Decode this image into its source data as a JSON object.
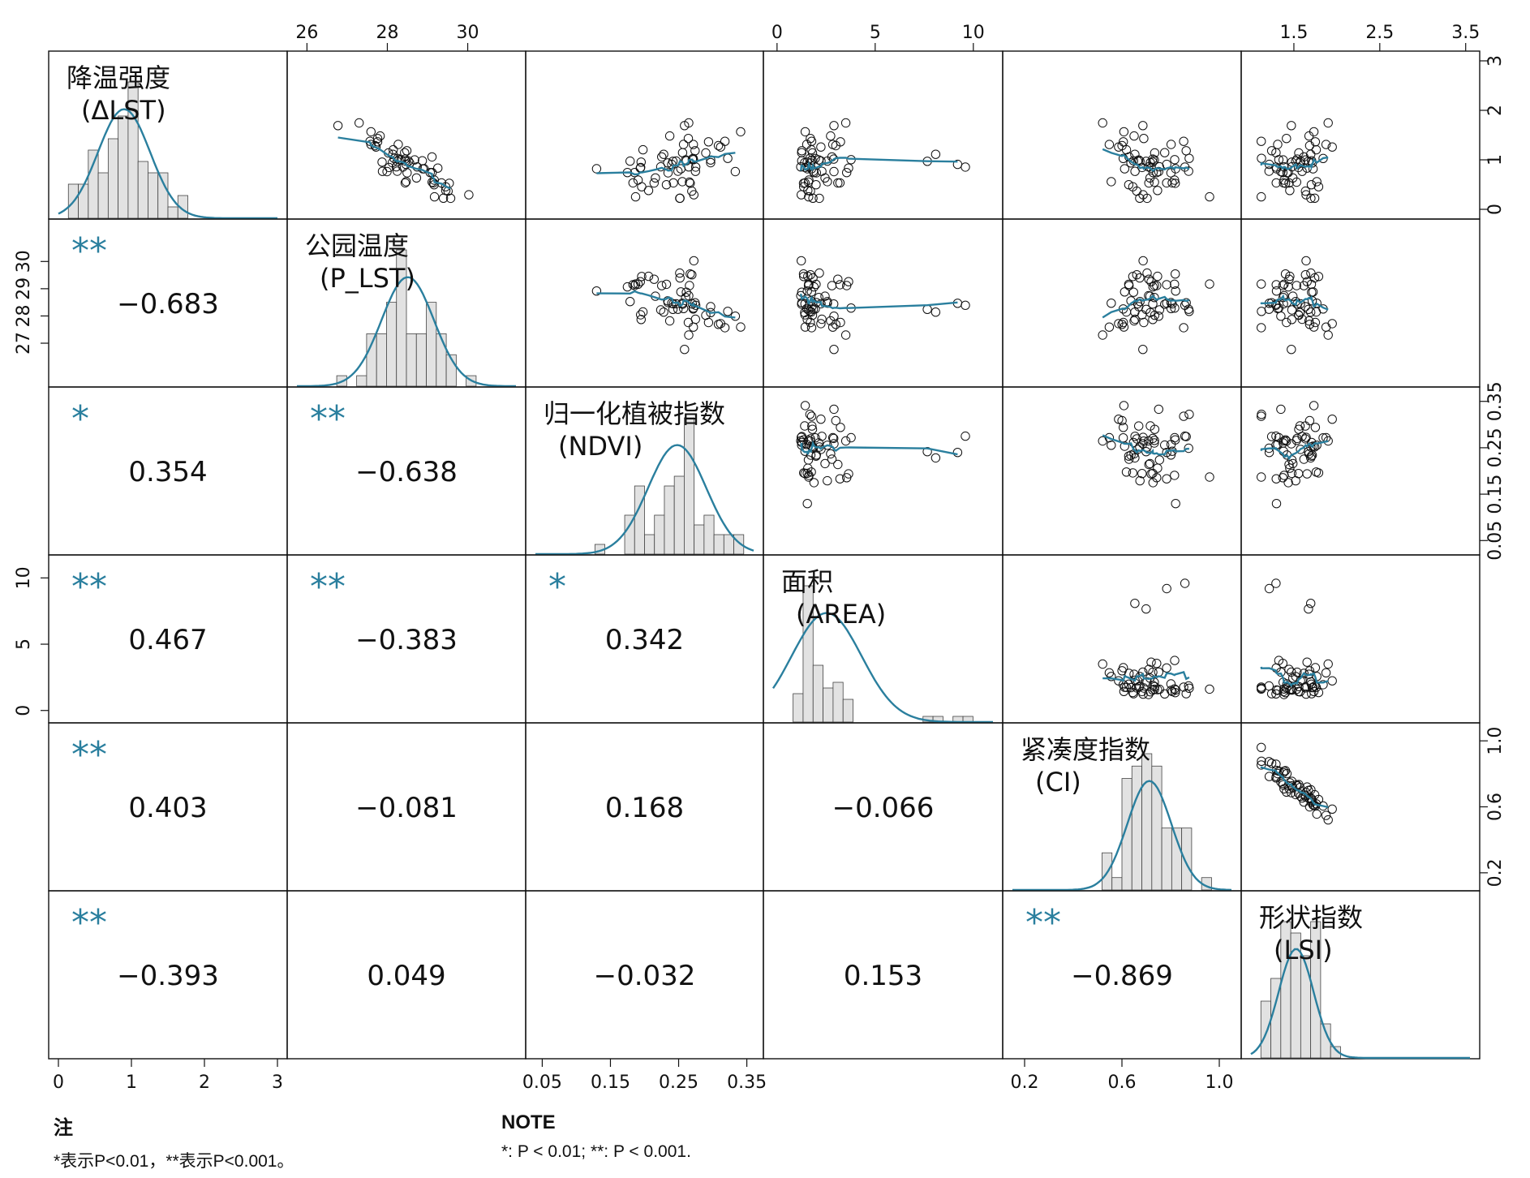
{
  "chart_data": {
    "type": "pair-correlation-matrix",
    "variables": [
      {
        "id": "dlst",
        "label_line1": "降温强度",
        "label_line2": "(ΔLST)",
        "range": [
          0,
          3
        ],
        "ticks": [
          0,
          1,
          2,
          3
        ]
      },
      {
        "id": "plst",
        "label_line1": "公园温度",
        "label_line2": "(P_LST)",
        "range": [
          25.75,
          31.2
        ],
        "ticks": [
          26,
          28,
          30
        ],
        "left_ticks": [
          27,
          28,
          29,
          30
        ]
      },
      {
        "id": "ndvi",
        "label_line1": "归一化植被指数",
        "label_line2": "(NDVI)",
        "range": [
          0.04,
          0.36
        ],
        "ticks": [
          0.05,
          0.15,
          0.25,
          0.35
        ],
        "tick_labels": [
          "0.05",
          "0.15",
          "0.25",
          "0.35"
        ]
      },
      {
        "id": "area",
        "label_line1": "面积",
        "label_line2": "(AREA)",
        "range": [
          -0.2,
          11
        ],
        "ticks": [
          0,
          5,
          10
        ]
      },
      {
        "id": "ci",
        "label_line1": "紧凑度指数",
        "label_line2": "(CI)",
        "range": [
          0.15,
          1.05
        ],
        "ticks": [
          0.2,
          0.6,
          1.0
        ],
        "tick_labels": [
          "0.2",
          "0.6",
          "1.0"
        ]
      },
      {
        "id": "lsi",
        "label_line1": "形状指数",
        "label_line2": "(LSI)",
        "range": [
          1.0,
          3.55
        ],
        "ticks": [
          1.5,
          2.5,
          3.5
        ],
        "tick_labels": [
          "1.5",
          "2.5",
          "3.5"
        ],
        "right_ticks": [
          0,
          1,
          2,
          3
        ]
      }
    ],
    "correlations": [
      {
        "row": 2,
        "col": 1,
        "value": "−0.683",
        "sig": "**"
      },
      {
        "row": 3,
        "col": 1,
        "value": "0.354",
        "sig": "*"
      },
      {
        "row": 3,
        "col": 2,
        "value": "−0.638",
        "sig": "**"
      },
      {
        "row": 4,
        "col": 1,
        "value": "0.467",
        "sig": "**"
      },
      {
        "row": 4,
        "col": 2,
        "value": "−0.383",
        "sig": "**"
      },
      {
        "row": 4,
        "col": 3,
        "value": "0.342",
        "sig": "*"
      },
      {
        "row": 5,
        "col": 1,
        "value": "0.403",
        "sig": "**"
      },
      {
        "row": 5,
        "col": 2,
        "value": "−0.081",
        "sig": ""
      },
      {
        "row": 5,
        "col": 3,
        "value": "0.168",
        "sig": ""
      },
      {
        "row": 5,
        "col": 4,
        "value": "−0.066",
        "sig": ""
      },
      {
        "row": 6,
        "col": 1,
        "value": "−0.393",
        "sig": "**"
      },
      {
        "row": 6,
        "col": 2,
        "value": "0.049",
        "sig": ""
      },
      {
        "row": 6,
        "col": 3,
        "value": "−0.032",
        "sig": ""
      },
      {
        "row": 6,
        "col": 4,
        "value": "0.153",
        "sig": ""
      },
      {
        "row": 6,
        "col": 5,
        "value": "−0.869",
        "sig": "**"
      }
    ],
    "colors": {
      "line": "#2a7f9e",
      "sig": "#2a7f9e",
      "bar_fill": "#e2e2e2",
      "bar_stroke": "#444444"
    }
  },
  "notes": {
    "cn_title": "注",
    "cn_text": "*表示P<0.01，**表示P<0.001。",
    "en_title": "NOTE",
    "en_text": "*: P < 0.01; **: P < 0.001."
  }
}
